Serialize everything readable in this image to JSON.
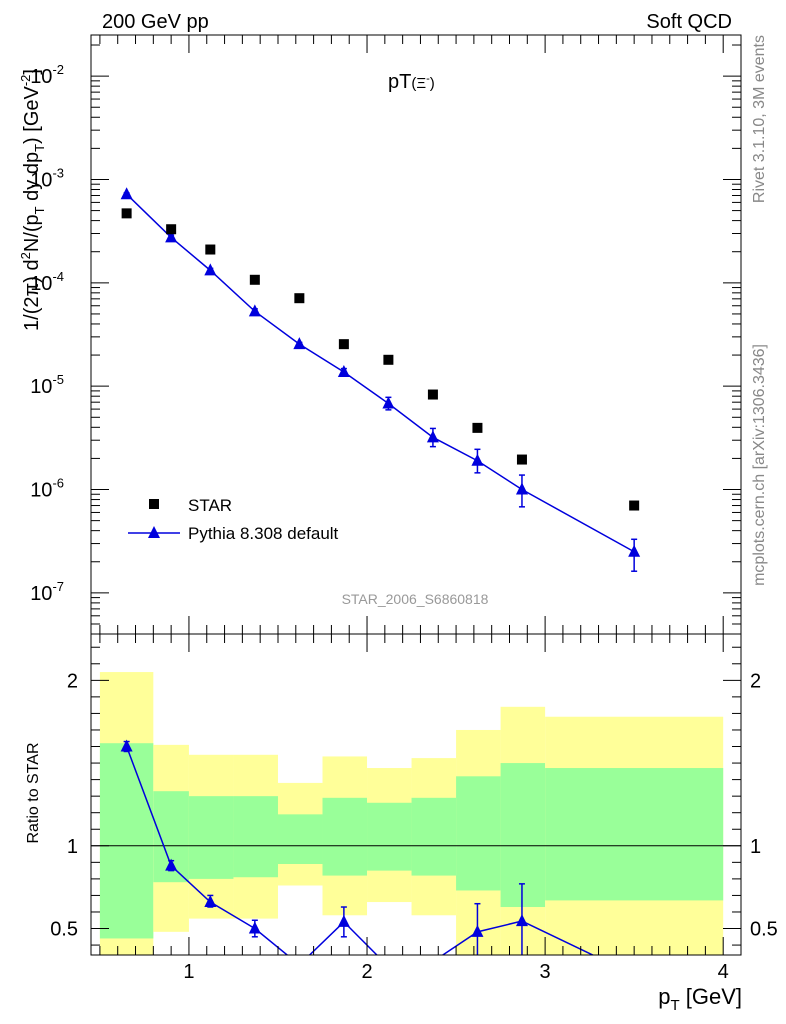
{
  "header": {
    "left": "200 GeV pp",
    "right": "Soft QCD"
  },
  "side": {
    "rivet": "Rivet 3.1.10,  3M events",
    "mcplots": "mcplots.cern.ch [arXiv:1306.3436]"
  },
  "colors": {
    "data": "#000000",
    "mc": "#0000dd",
    "band_inner": "#99ff99",
    "band_outer": "#ffff99",
    "watermark": "#999999"
  },
  "chart_data": [
    {
      "type": "scatter",
      "title": "pT(Ξ⁻)",
      "title_main": "pT",
      "title_particle": "(Ξ",
      "title_sup": "-",
      "title_close": ")",
      "ylabel": "1/(2π) d²N/(p_T dy dp_T) [GeV²]",
      "yscale": "log",
      "ylim": [
        4e-08,
        0.025
      ],
      "xlim": [
        0.45,
        4.1
      ],
      "ytick_values": [
        1e-07,
        1e-06,
        1e-05,
        0.0001,
        0.001,
        0.01
      ],
      "ytick_labels": [
        {
          "base": "10",
          "exp": "-7"
        },
        {
          "base": "10",
          "exp": "-6"
        },
        {
          "base": "10",
          "exp": "-5"
        },
        {
          "base": "10",
          "exp": "-4"
        },
        {
          "base": "10",
          "exp": "-3"
        },
        {
          "base": "10",
          "exp": "-2"
        }
      ],
      "watermark": "STAR_2006_S6860818",
      "legend_position": "lower-left",
      "series": [
        {
          "name": "STAR",
          "marker": "square",
          "x": [
            0.65,
            0.9,
            1.12,
            1.37,
            1.62,
            1.87,
            2.12,
            2.37,
            2.62,
            2.87,
            3.5
          ],
          "y": [
            0.00047,
            0.00033,
            0.00021,
            0.000107,
            7.1e-05,
            2.55e-05,
            1.8e-05,
            8.3e-06,
            3.95e-06,
            1.95e-06,
            7e-07
          ]
        },
        {
          "name": "Pythia 8.308 default",
          "marker": "triangle",
          "x": [
            0.65,
            0.9,
            1.12,
            1.37,
            1.62,
            1.87,
            2.12,
            2.37,
            2.62,
            2.87,
            3.5
          ],
          "y": [
            0.00072,
            0.000275,
            0.000132,
            5.3e-05,
            2.55e-05,
            1.37e-05,
            6.8e-06,
            3.2e-06,
            1.9e-06,
            1e-06,
            2.5e-07
          ],
          "yerr_low": [
            0.0007,
            0.00026,
            0.000126,
            5e-05,
            2.45e-05,
            1.26e-05,
            5.9e-06,
            2.6e-06,
            1.45e-06,
            6.8e-07,
            1.62e-07
          ],
          "yerr_high": [
            0.00074,
            0.00029,
            0.000138,
            5.6e-05,
            2.65e-05,
            1.48e-05,
            7.8e-06,
            3.9e-06,
            2.45e-06,
            1.38e-06,
            3.3e-07
          ]
        }
      ]
    },
    {
      "type": "line",
      "ylabel": "Ratio to STAR",
      "xlabel": "p_T [GeV]",
      "xlabel_main": "p",
      "xlabel_sub": "T",
      "xlabel_unit": "[GeV]",
      "ylim": [
        0.34,
        2.28
      ],
      "xlim": [
        0.45,
        4.1
      ],
      "ytick_labels": [
        "0.5",
        "1",
        "2"
      ],
      "ytick_values": [
        0.5,
        1,
        2
      ],
      "xtick_labels": [
        "1",
        "2",
        "3",
        "4"
      ],
      "xtick_values": [
        1,
        2,
        3,
        4
      ],
      "reference_line": 1,
      "bands": {
        "edges": [
          0.5,
          0.8,
          1.0,
          1.25,
          1.5,
          1.75,
          2.0,
          2.25,
          2.5,
          2.75,
          3.0,
          4.0
        ],
        "inner_low": [
          0.44,
          0.78,
          0.8,
          0.81,
          0.89,
          0.82,
          0.85,
          0.82,
          0.73,
          0.63,
          0.67
        ],
        "inner_high": [
          1.62,
          1.33,
          1.3,
          1.3,
          1.19,
          1.29,
          1.26,
          1.29,
          1.42,
          1.5,
          1.47
        ],
        "outer_low": [
          0.34,
          0.48,
          0.56,
          0.56,
          0.76,
          0.58,
          0.66,
          0.58,
          0.34,
          0.34,
          0.34
        ],
        "outer_high": [
          2.05,
          1.61,
          1.55,
          1.55,
          1.38,
          1.54,
          1.47,
          1.53,
          1.7,
          1.84,
          1.78
        ]
      },
      "series": [
        {
          "name": "Pythia 8.308 default",
          "x": [
            0.65,
            0.9,
            1.12,
            1.37,
            1.62,
            1.87,
            2.12,
            2.37,
            2.62,
            2.87,
            3.5
          ],
          "y": [
            1.6,
            0.88,
            0.66,
            0.5,
            0.28,
            0.54,
            0.27,
            0.3,
            0.48,
            0.545,
            0.22
          ],
          "yerr_low": [
            1.57,
            0.85,
            0.63,
            0.45,
            0.26,
            0.45,
            0.25,
            0.27,
            0.3,
            0.3,
            0.17
          ],
          "yerr_high": [
            1.63,
            0.91,
            0.7,
            0.55,
            0.3,
            0.63,
            0.29,
            0.33,
            0.65,
            0.77,
            0.27
          ],
          "markers_shown": [
            true,
            true,
            true,
            true,
            false,
            true,
            false,
            false,
            true,
            true,
            false
          ]
        }
      ]
    }
  ]
}
